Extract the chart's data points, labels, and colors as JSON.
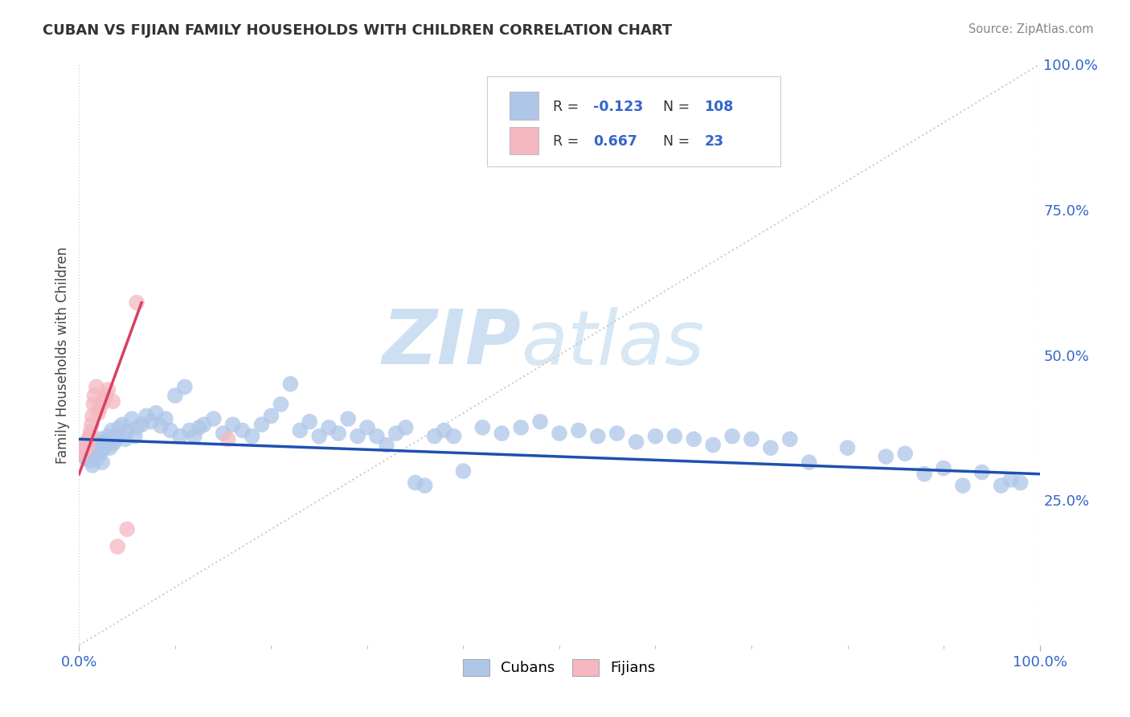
{
  "title": "CUBAN VS FIJIAN FAMILY HOUSEHOLDS WITH CHILDREN CORRELATION CHART",
  "source": "Source: ZipAtlas.com",
  "ylabel": "Family Households with Children",
  "xlim": [
    0.0,
    1.0
  ],
  "ylim": [
    0.0,
    1.0
  ],
  "ytick_positions_right": [
    1.0,
    0.75,
    0.5,
    0.25
  ],
  "ytick_labels_right": [
    "100.0%",
    "75.0%",
    "50.0%",
    "25.0%"
  ],
  "cuban_color": "#aec6e8",
  "fijian_color": "#f4b8c1",
  "cuban_line_color": "#1e50b0",
  "fijian_line_color": "#d84060",
  "axis_label_color": "#3366cc",
  "watermark_color": "#c0d8f0",
  "grid_color": "#c8d8e8",
  "title_color": "#333333",
  "source_color": "#888888",
  "background_color": "#ffffff",
  "legend_text_color": "#333333",
  "legend_value_color": "#3366cc",
  "cuban_x": [
    0.002,
    0.003,
    0.004,
    0.005,
    0.006,
    0.007,
    0.008,
    0.009,
    0.01,
    0.011,
    0.012,
    0.013,
    0.014,
    0.015,
    0.016,
    0.017,
    0.018,
    0.019,
    0.02,
    0.021,
    0.022,
    0.023,
    0.024,
    0.025,
    0.026,
    0.028,
    0.03,
    0.032,
    0.034,
    0.036,
    0.038,
    0.04,
    0.042,
    0.045,
    0.048,
    0.05,
    0.055,
    0.058,
    0.06,
    0.065,
    0.07,
    0.075,
    0.08,
    0.085,
    0.09,
    0.095,
    0.1,
    0.105,
    0.11,
    0.115,
    0.12,
    0.125,
    0.13,
    0.14,
    0.15,
    0.16,
    0.17,
    0.18,
    0.19,
    0.2,
    0.21,
    0.22,
    0.23,
    0.24,
    0.25,
    0.26,
    0.27,
    0.28,
    0.29,
    0.3,
    0.31,
    0.32,
    0.33,
    0.34,
    0.35,
    0.36,
    0.37,
    0.38,
    0.39,
    0.4,
    0.42,
    0.44,
    0.46,
    0.48,
    0.5,
    0.52,
    0.54,
    0.56,
    0.58,
    0.6,
    0.62,
    0.64,
    0.66,
    0.68,
    0.7,
    0.72,
    0.74,
    0.76,
    0.8,
    0.84,
    0.86,
    0.88,
    0.9,
    0.92,
    0.94,
    0.96,
    0.97,
    0.98
  ],
  "cuban_y": [
    0.33,
    0.335,
    0.34,
    0.328,
    0.345,
    0.322,
    0.338,
    0.325,
    0.35,
    0.342,
    0.318,
    0.355,
    0.31,
    0.345,
    0.33,
    0.34,
    0.32,
    0.348,
    0.335,
    0.328,
    0.342,
    0.355,
    0.315,
    0.338,
    0.35,
    0.345,
    0.36,
    0.34,
    0.37,
    0.348,
    0.355,
    0.365,
    0.375,
    0.38,
    0.355,
    0.368,
    0.39,
    0.36,
    0.375,
    0.38,
    0.395,
    0.385,
    0.4,
    0.378,
    0.39,
    0.37,
    0.43,
    0.36,
    0.445,
    0.37,
    0.36,
    0.375,
    0.38,
    0.39,
    0.365,
    0.38,
    0.37,
    0.36,
    0.38,
    0.395,
    0.415,
    0.45,
    0.37,
    0.385,
    0.36,
    0.375,
    0.365,
    0.39,
    0.36,
    0.375,
    0.36,
    0.345,
    0.365,
    0.375,
    0.28,
    0.275,
    0.36,
    0.37,
    0.36,
    0.3,
    0.375,
    0.365,
    0.375,
    0.385,
    0.365,
    0.37,
    0.36,
    0.365,
    0.35,
    0.36,
    0.36,
    0.355,
    0.345,
    0.36,
    0.355,
    0.34,
    0.355,
    0.315,
    0.34,
    0.325,
    0.33,
    0.295,
    0.305,
    0.275,
    0.298,
    0.275,
    0.285,
    0.28
  ],
  "fijian_x": [
    0.003,
    0.005,
    0.007,
    0.008,
    0.009,
    0.01,
    0.011,
    0.012,
    0.013,
    0.014,
    0.015,
    0.016,
    0.018,
    0.02,
    0.022,
    0.025,
    0.028,
    0.03,
    0.035,
    0.04,
    0.05,
    0.06,
    0.155
  ],
  "fijian_y": [
    0.33,
    0.335,
    0.34,
    0.35,
    0.345,
    0.355,
    0.36,
    0.368,
    0.38,
    0.395,
    0.415,
    0.43,
    0.445,
    0.4,
    0.41,
    0.42,
    0.43,
    0.44,
    0.42,
    0.17,
    0.2,
    0.59,
    0.355
  ],
  "cuban_line_x": [
    0.0,
    1.0
  ],
  "cuban_line_y": [
    0.355,
    0.295
  ],
  "fijian_line_x_start": 0.0,
  "fijian_line_x_end": 0.065,
  "fijian_line_y_start": 0.295,
  "fijian_line_y_end": 0.59,
  "diag_line_color": "#c0c0c0"
}
